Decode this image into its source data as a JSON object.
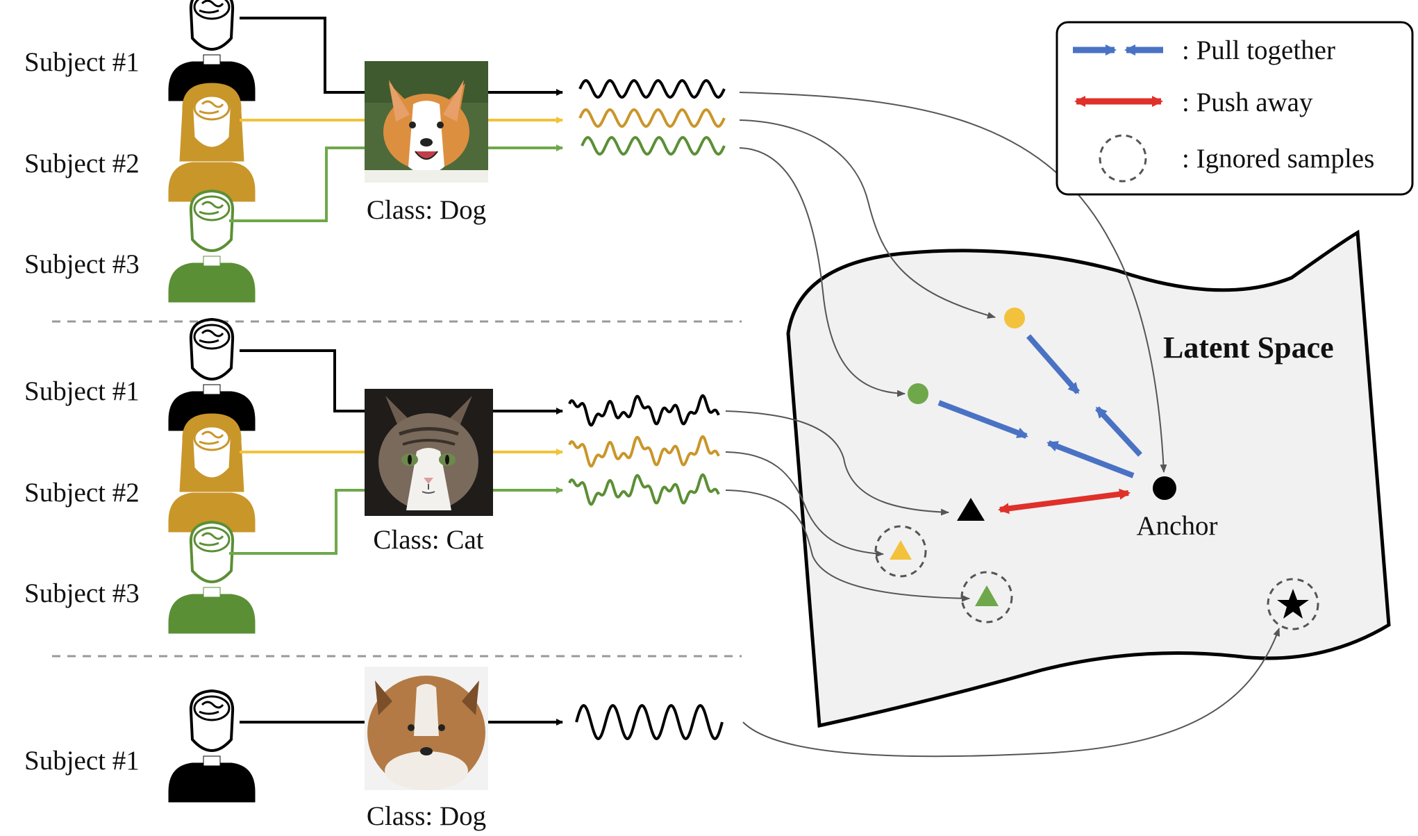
{
  "colors": {
    "subject1": "#000000",
    "subject2": "#c9962a",
    "subject2_line": "#f2c23c",
    "subject3": "#5b8f35",
    "subject3_line": "#6ea84a",
    "pull_arrow": "#4a72c4",
    "push_arrow": "#e0302a",
    "latent_fill": "#f1f1f1",
    "divider": "#999999"
  },
  "rows": [
    {
      "subject": "Subject #1",
      "color_key": "subject1"
    },
    {
      "subject": "Subject #2",
      "color_key": "subject2"
    },
    {
      "subject": "Subject #3",
      "color_key": "subject3"
    },
    {
      "subject": "Subject #1",
      "color_key": "subject1"
    },
    {
      "subject": "Subject #2",
      "color_key": "subject2"
    },
    {
      "subject": "Subject #3",
      "color_key": "subject3"
    },
    {
      "subject": "Subject #1",
      "color_key": "subject1"
    }
  ],
  "groups": [
    {
      "class_label": "Class: Dog",
      "image": "corgi-photo"
    },
    {
      "class_label": "Class: Cat",
      "image": "tabby-cat-photo"
    },
    {
      "class_label": "Class: Dog",
      "image": "sheltie-photo"
    }
  ],
  "latent": {
    "title": "Latent Space",
    "anchor_label": "Anchor"
  },
  "legend": {
    "pull_label": ": Pull together",
    "push_label": ": Push away",
    "ignored_label": ": Ignored samples"
  }
}
